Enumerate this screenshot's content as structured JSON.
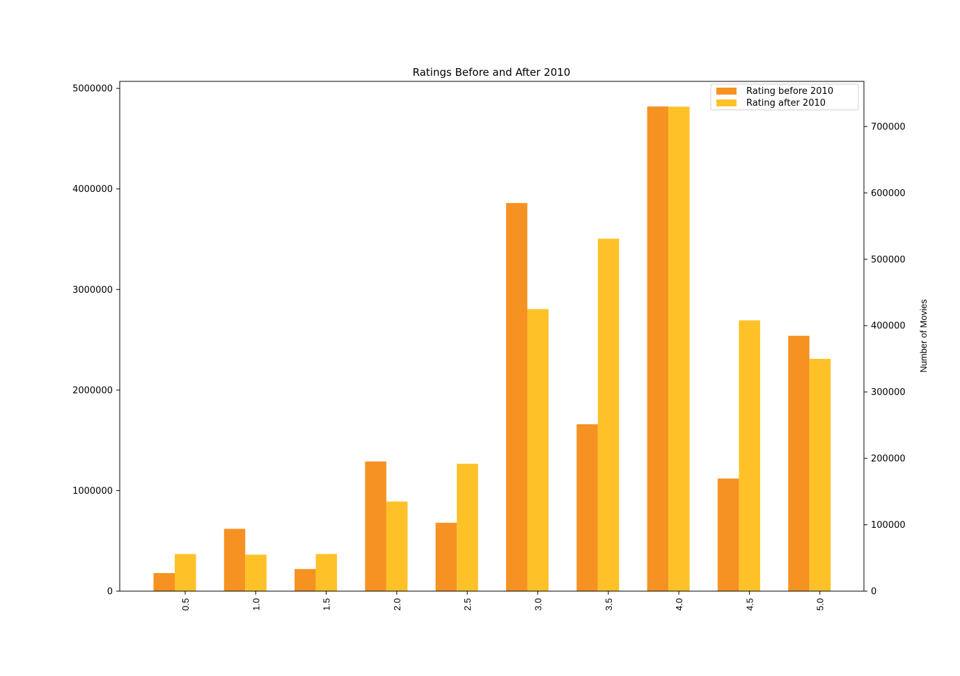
{
  "chart_data": {
    "type": "bar",
    "title": "Ratings Before and After 2010",
    "xlabel": "",
    "ylabel_left": "",
    "ylabel_right": "Number of Movies",
    "categories": [
      "0.5",
      "1.0",
      "1.5",
      "2.0",
      "2.5",
      "3.0",
      "3.5",
      "4.0",
      "4.5",
      "5.0"
    ],
    "series": [
      {
        "name": "Rating before 2010",
        "color": "#f59222",
        "axis": "left",
        "values": [
          180000,
          620000,
          220000,
          1290000,
          680000,
          3860000,
          1660000,
          4820000,
          1120000,
          2540000
        ]
      },
      {
        "name": "Rating after 2010",
        "color": "#fec127",
        "axis": "right",
        "values": [
          56000,
          55000,
          56000,
          135000,
          192000,
          425000,
          531000,
          730000,
          408000,
          350000
        ]
      }
    ],
    "ylim_left": [
      0,
      5070000
    ],
    "ylim_right": [
      0,
      768000
    ],
    "yticks_left": [
      "0",
      "1000000",
      "2000000",
      "3000000",
      "4000000",
      "5000000"
    ],
    "yticks_right": [
      "0",
      "100000",
      "200000",
      "300000",
      "400000",
      "500000",
      "600000",
      "700000"
    ],
    "legend_position": "top-right",
    "grid": false
  }
}
